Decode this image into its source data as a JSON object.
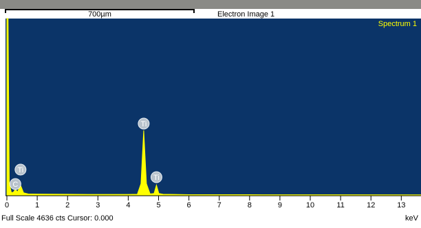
{
  "chart_data": {
    "type": "spectrum",
    "title": "Spectrum 1",
    "image_label": "Electron Image 1",
    "scale_bar": "700µm",
    "status": "Full Scale 4636 cts Cursor: 0.000",
    "xlabel": "keV",
    "x": [
      0,
      0.04,
      0.08,
      0.15,
      0.22,
      0.28,
      0.35,
      0.45,
      0.55,
      0.7,
      1,
      2,
      3,
      4,
      4.3,
      4.42,
      4.51,
      4.6,
      4.72,
      4.85,
      4.93,
      5.01,
      5.15,
      6,
      8,
      10,
      13.65
    ],
    "series": [
      {
        "name": "Spectrum 1",
        "color": "#ffff00",
        "values": [
          4636,
          4636,
          300,
          60,
          80,
          150,
          80,
          260,
          60,
          30,
          25,
          20,
          15,
          15,
          20,
          300,
          1700,
          300,
          30,
          40,
          260,
          40,
          20,
          10,
          8,
          6,
          5
        ]
      }
    ],
    "annotations": [
      {
        "text": "Ti",
        "x": 4.51,
        "y": 1876
      },
      {
        "text": "Ti",
        "x": 0.45,
        "y": 667
      },
      {
        "text": "C",
        "x": 0.28,
        "y": 289
      },
      {
        "text": "Ti",
        "x": 4.93,
        "y": 469
      }
    ],
    "xlim": [
      0,
      13.65
    ],
    "ylim": [
      0,
      4636
    ],
    "xticks": [
      0,
      1,
      2,
      3,
      4,
      5,
      6,
      7,
      8,
      9,
      10,
      11,
      12,
      13
    ],
    "background": "#0b3468"
  }
}
